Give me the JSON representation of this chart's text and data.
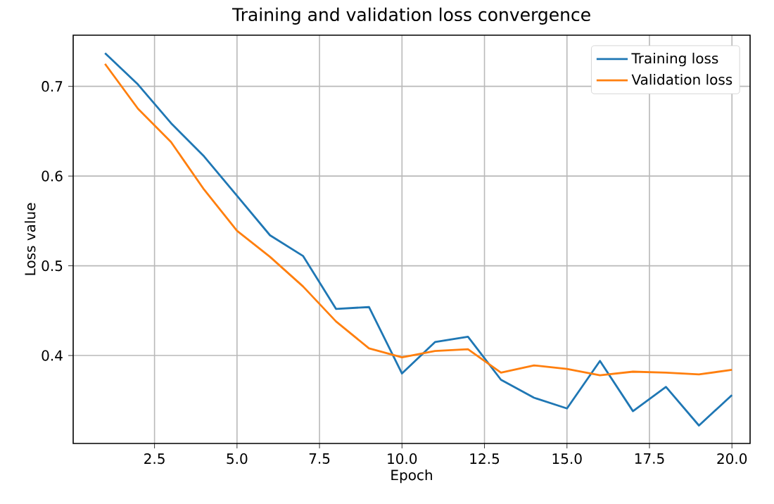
{
  "chart_data": {
    "type": "line",
    "title": "Training and validation loss convergence",
    "xlabel": "Epoch",
    "ylabel": "Loss value",
    "x": [
      1,
      2,
      3,
      4,
      5,
      6,
      7,
      8,
      9,
      10,
      11,
      12,
      13,
      14,
      15,
      16,
      17,
      18,
      19,
      20
    ],
    "series": [
      {
        "name": "Training loss",
        "color": "#1f77b4",
        "values": [
          0.737,
          0.702,
          0.659,
          0.622,
          0.578,
          0.534,
          0.511,
          0.452,
          0.454,
          0.38,
          0.415,
          0.421,
          0.373,
          0.353,
          0.341,
          0.394,
          0.338,
          0.365,
          0.322,
          0.356
        ]
      },
      {
        "name": "Validation loss",
        "color": "#ff7f0e",
        "values": [
          0.725,
          0.675,
          0.638,
          0.585,
          0.539,
          0.51,
          0.477,
          0.438,
          0.408,
          0.398,
          0.405,
          0.407,
          0.381,
          0.389,
          0.385,
          0.378,
          0.382,
          0.381,
          0.379,
          0.384
        ]
      }
    ],
    "xlim": [
      0.035,
      20.55
    ],
    "ylim": [
      0.302,
      0.757
    ],
    "xticks": [
      {
        "value": 2.5,
        "label": "2.5"
      },
      {
        "value": 5,
        "label": "5.0"
      },
      {
        "value": 7.5,
        "label": "7.5"
      },
      {
        "value": 10,
        "label": "10.0"
      },
      {
        "value": 12.5,
        "label": "12.5"
      },
      {
        "value": 15,
        "label": "15.0"
      },
      {
        "value": 17.5,
        "label": "17.5"
      },
      {
        "value": 20,
        "label": "20.0"
      }
    ],
    "yticks": [
      0.4,
      0.5,
      0.6,
      0.7
    ],
    "grid": true,
    "legend": "top right",
    "line_style": "solid"
  }
}
